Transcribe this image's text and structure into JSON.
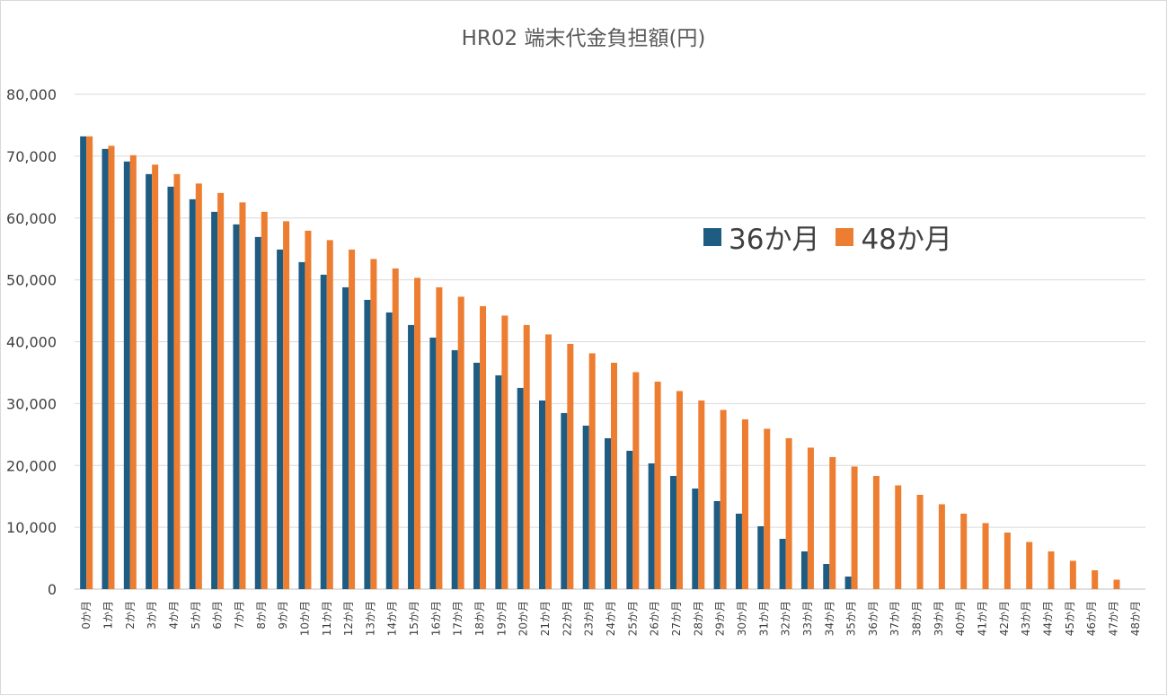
{
  "chart_data": {
    "type": "bar",
    "title": "HR02 端末代金負担額(円)",
    "xlabel": "",
    "ylabel": "",
    "ylim": [
      0,
      80000
    ],
    "yticks": [
      0,
      10000,
      20000,
      30000,
      40000,
      50000,
      60000,
      70000,
      80000
    ],
    "ytick_labels": [
      "0",
      "10,000",
      "20,000",
      "30,000",
      "40,000",
      "50,000",
      "60,000",
      "70,000",
      "80,000"
    ],
    "grid": true,
    "legend_position": "top-right",
    "categories": [
      "0か月",
      "1か月",
      "2か月",
      "3か月",
      "4か月",
      "5か月",
      "6か月",
      "7か月",
      "8か月",
      "9か月",
      "10か月",
      "11か月",
      "12か月",
      "13か月",
      "14か月",
      "15か月",
      "16か月",
      "17か月",
      "18か月",
      "19か月",
      "20か月",
      "21か月",
      "22か月",
      "23か月",
      "24か月",
      "25か月",
      "26か月",
      "27か月",
      "28か月",
      "29か月",
      "30か月",
      "31か月",
      "32か月",
      "33か月",
      "34か月",
      "35か月",
      "36か月",
      "37か月",
      "38か月",
      "39か月",
      "40か月",
      "41か月",
      "42か月",
      "43か月",
      "44か月",
      "45か月",
      "46か月",
      "47か月",
      "48か月"
    ],
    "series": [
      {
        "name": "36か月",
        "color": "#1f5c82",
        "values": [
          73200,
          71167,
          69133,
          67100,
          65067,
          63033,
          61000,
          58967,
          56933,
          54900,
          52867,
          50833,
          48800,
          46767,
          44733,
          42700,
          40667,
          38633,
          36600,
          34567,
          32533,
          30500,
          28467,
          26433,
          24400,
          22367,
          20333,
          18300,
          16267,
          14233,
          12200,
          10167,
          8133,
          6100,
          4067,
          2033,
          0,
          0,
          0,
          0,
          0,
          0,
          0,
          0,
          0,
          0,
          0,
          0,
          0
        ]
      },
      {
        "name": "48か月",
        "color": "#ed7d31",
        "values": [
          73200,
          71675,
          70150,
          68625,
          67100,
          65575,
          64050,
          62525,
          61000,
          59475,
          57950,
          56425,
          54900,
          53375,
          51850,
          50325,
          48800,
          47275,
          45750,
          44225,
          42700,
          41175,
          39650,
          38125,
          36600,
          35075,
          33550,
          32025,
          30500,
          28975,
          27450,
          25925,
          24400,
          22875,
          21350,
          19825,
          18300,
          16775,
          15250,
          13725,
          12200,
          10675,
          9150,
          7625,
          6100,
          4575,
          3050,
          1525,
          0
        ]
      }
    ]
  }
}
